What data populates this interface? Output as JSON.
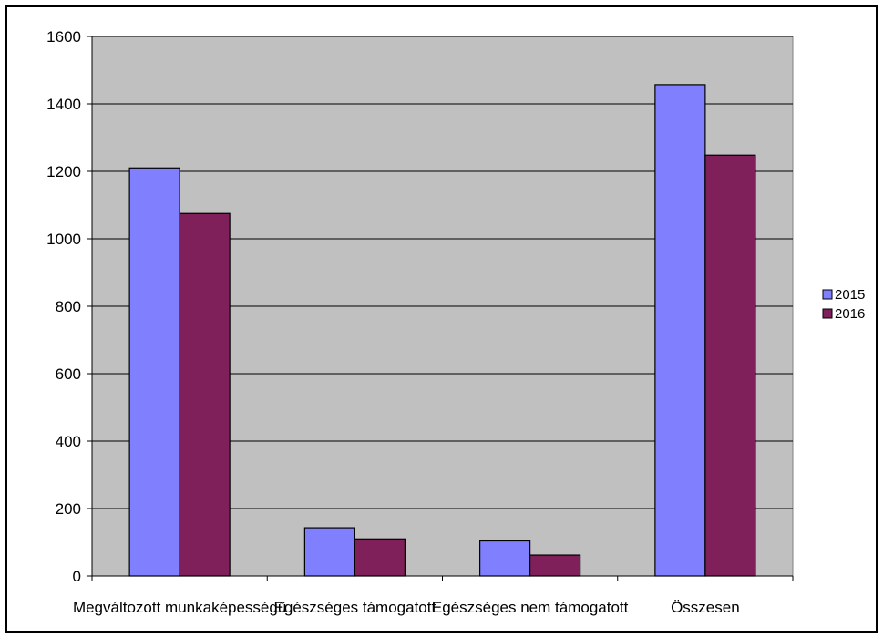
{
  "chart_data": {
    "type": "bar",
    "categories": [
      "Megváltozott munkaképességű",
      "Egészséges támogatott",
      "Egészséges nem támogatott",
      "Összesen"
    ],
    "series": [
      {
        "name": "2015",
        "values": [
          1210,
          143,
          104,
          1457
        ],
        "color": "#8080FF"
      },
      {
        "name": "2016",
        "values": [
          1075,
          110,
          62,
          1248
        ],
        "color": "#80205A"
      }
    ],
    "ylim": [
      0,
      1600
    ],
    "yticks": [
      0,
      200,
      400,
      600,
      800,
      1000,
      1200,
      1400,
      1600
    ],
    "grid": true,
    "plot_background": "#C0C0C0",
    "legend_position": "right"
  }
}
